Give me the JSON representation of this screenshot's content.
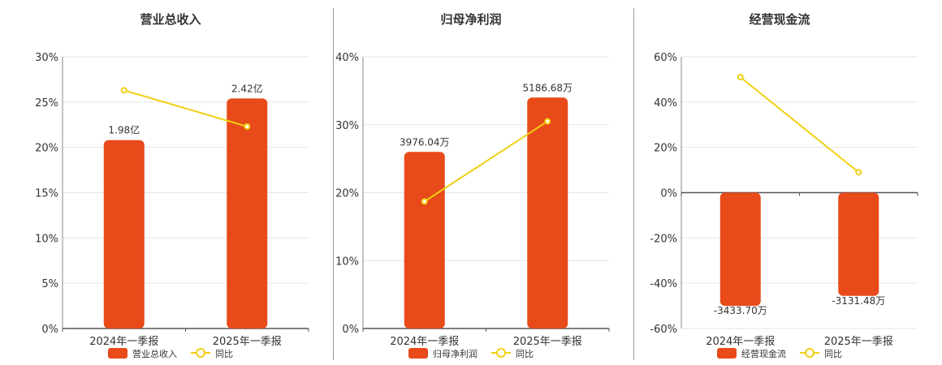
{
  "colors": {
    "bar": "#e84a1a",
    "line": "#f1cf12",
    "grid": "#e6e6e6",
    "axis": "#555555",
    "text": "#333333"
  },
  "chart_data": [
    {
      "type": "bar",
      "title": "营业总收入",
      "categories": [
        "2024年一季报",
        "2025年一季报"
      ],
      "y_ticks": [
        "30%",
        "25%",
        "20%",
        "15%",
        "10%",
        "5%",
        "0%"
      ],
      "ylim": [
        0,
        30
      ],
      "series": [
        {
          "name": "营业总收入",
          "kind": "bar",
          "values": [
            20.8,
            25.4
          ],
          "labels": [
            "1.98亿",
            "2.42亿"
          ]
        },
        {
          "name": "同比",
          "kind": "line",
          "values": [
            26.3,
            22.3
          ]
        }
      ]
    },
    {
      "type": "bar",
      "title": "归母净利润",
      "categories": [
        "2024年一季报",
        "2025年一季报"
      ],
      "y_ticks": [
        "40%",
        "30%",
        "20%",
        "10%",
        "0%"
      ],
      "ylim": [
        0,
        40
      ],
      "series": [
        {
          "name": "归母净利润",
          "kind": "bar",
          "values": [
            26.0,
            34.0
          ],
          "labels": [
            "3976.04万",
            "5186.68万"
          ]
        },
        {
          "name": "同比",
          "kind": "line",
          "values": [
            18.7,
            30.5
          ]
        }
      ]
    },
    {
      "type": "bar",
      "title": "经营现金流",
      "categories": [
        "2024年一季报",
        "2025年一季报"
      ],
      "y_ticks": [
        "60%",
        "40%",
        "20%",
        "0%",
        "-20%",
        "-40%",
        "-60%"
      ],
      "ylim": [
        -60,
        60
      ],
      "series": [
        {
          "name": "经营现金流",
          "kind": "bar",
          "values": [
            -50.0,
            -45.6
          ],
          "labels": [
            "-3433.70万",
            "-3131.48万"
          ]
        },
        {
          "name": "同比",
          "kind": "line",
          "values": [
            51.0,
            9.0
          ]
        }
      ]
    }
  ]
}
